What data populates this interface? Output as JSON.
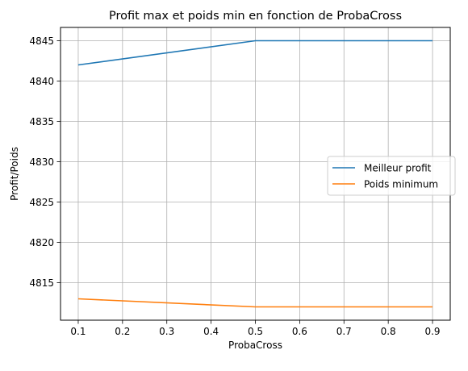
{
  "chart_data": {
    "type": "line",
    "title": "Profit max et poids min en fonction de ProbaCross",
    "xlabel": "ProbaCross",
    "ylabel": "Profit/Poids",
    "x": [
      0.1,
      0.5,
      0.9
    ],
    "xticks": [
      "0.1",
      "0.2",
      "0.3",
      "0.4",
      "0.5",
      "0.6",
      "0.7",
      "0.8",
      "0.9"
    ],
    "yticks": [
      "4815",
      "4820",
      "4825",
      "4830",
      "4835",
      "4840",
      "4845"
    ],
    "xlim": [
      0.06,
      0.94
    ],
    "ylim": [
      4810.35,
      4846.65
    ],
    "grid": true,
    "legend_position": "center-right",
    "series": [
      {
        "name": "Meilleur profit",
        "values": [
          4842,
          4845,
          4845
        ],
        "color": "#1f77b4"
      },
      {
        "name": "Poids minimum",
        "values": [
          4813,
          4812,
          4812
        ],
        "color": "#ff7f0e"
      }
    ]
  }
}
